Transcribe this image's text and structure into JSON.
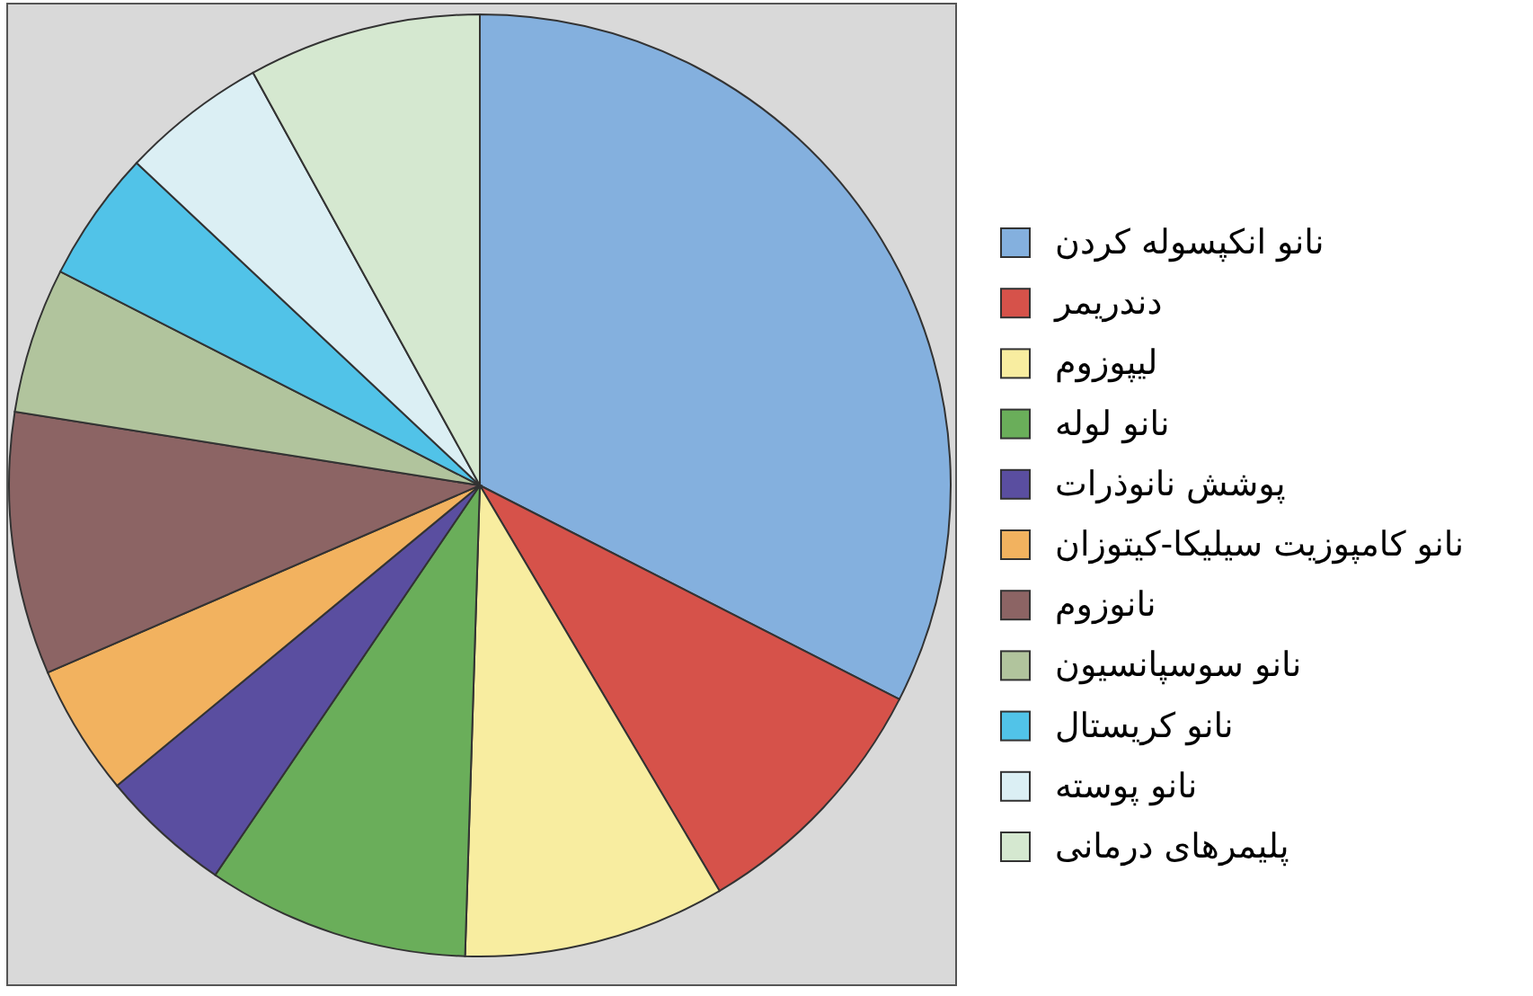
{
  "chart_data": {
    "type": "pie",
    "categories": [
      "نانو انکپسوله کردن",
      "دندریمر",
      "لیپوزوم",
      "نانو لوله",
      "پوشش نانوذرات",
      "نانو کامپوزیت سیلیکا-کیتوزان",
      "نانوزوم",
      "نانو سوسپانسیون",
      "نانو کریستال",
      "نانو پوسته",
      "پلیمرهای درمانی"
    ],
    "values": [
      32.5,
      9,
      9,
      9,
      4.5,
      4.5,
      9,
      5,
      4.5,
      5,
      8
    ],
    "colors": [
      "#84b0de",
      "#d6524a",
      "#f8eda0",
      "#6aae5a",
      "#5a4ea0",
      "#f2b25f",
      "#8c6464",
      "#b1c49d",
      "#51c3e8",
      "#dbeff4",
      "#d5e8d0"
    ],
    "legend": "right"
  }
}
